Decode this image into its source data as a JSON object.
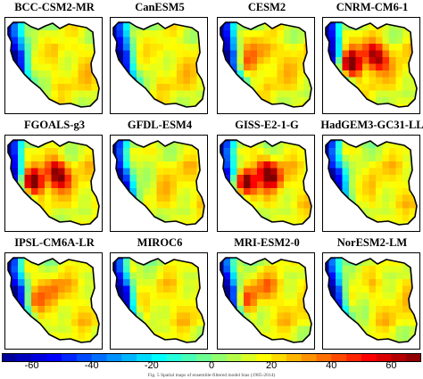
{
  "models": [
    {
      "name": "BCC-CSM2-MR",
      "hot": "none"
    },
    {
      "name": "CanESM5",
      "hot": "none"
    },
    {
      "name": "CESM2",
      "hot": "mild"
    },
    {
      "name": "CNRM-CM6-1",
      "hot": "strong"
    },
    {
      "name": "FGOALS-g3",
      "hot": "strong"
    },
    {
      "name": "GFDL-ESM4",
      "hot": "none"
    },
    {
      "name": "GISS-E2-1-G",
      "hot": "strong"
    },
    {
      "name": "HadGEM3-GC31-LL",
      "hot": "none"
    },
    {
      "name": "IPSL-CM6A-LR",
      "hot": "mild"
    },
    {
      "name": "MIROC6",
      "hot": "none"
    },
    {
      "name": "MRI-ESM2-0",
      "hot": "mild"
    },
    {
      "name": "NorESM2-LM",
      "hot": "none"
    }
  ],
  "colorbar": {
    "min": -70,
    "max": 70,
    "ticks": [
      "-60",
      "-40",
      "-20",
      "0",
      "20",
      "40",
      "60"
    ],
    "colors": [
      "#00008f",
      "#0000ff",
      "#0080ff",
      "#00ffff",
      "#80ff80",
      "#ffff00",
      "#ff8000",
      "#ff0000",
      "#800000"
    ]
  },
  "caption": "Fig. 5 Spatial maps of ensemble-filtered model bias (1985-2014)"
}
